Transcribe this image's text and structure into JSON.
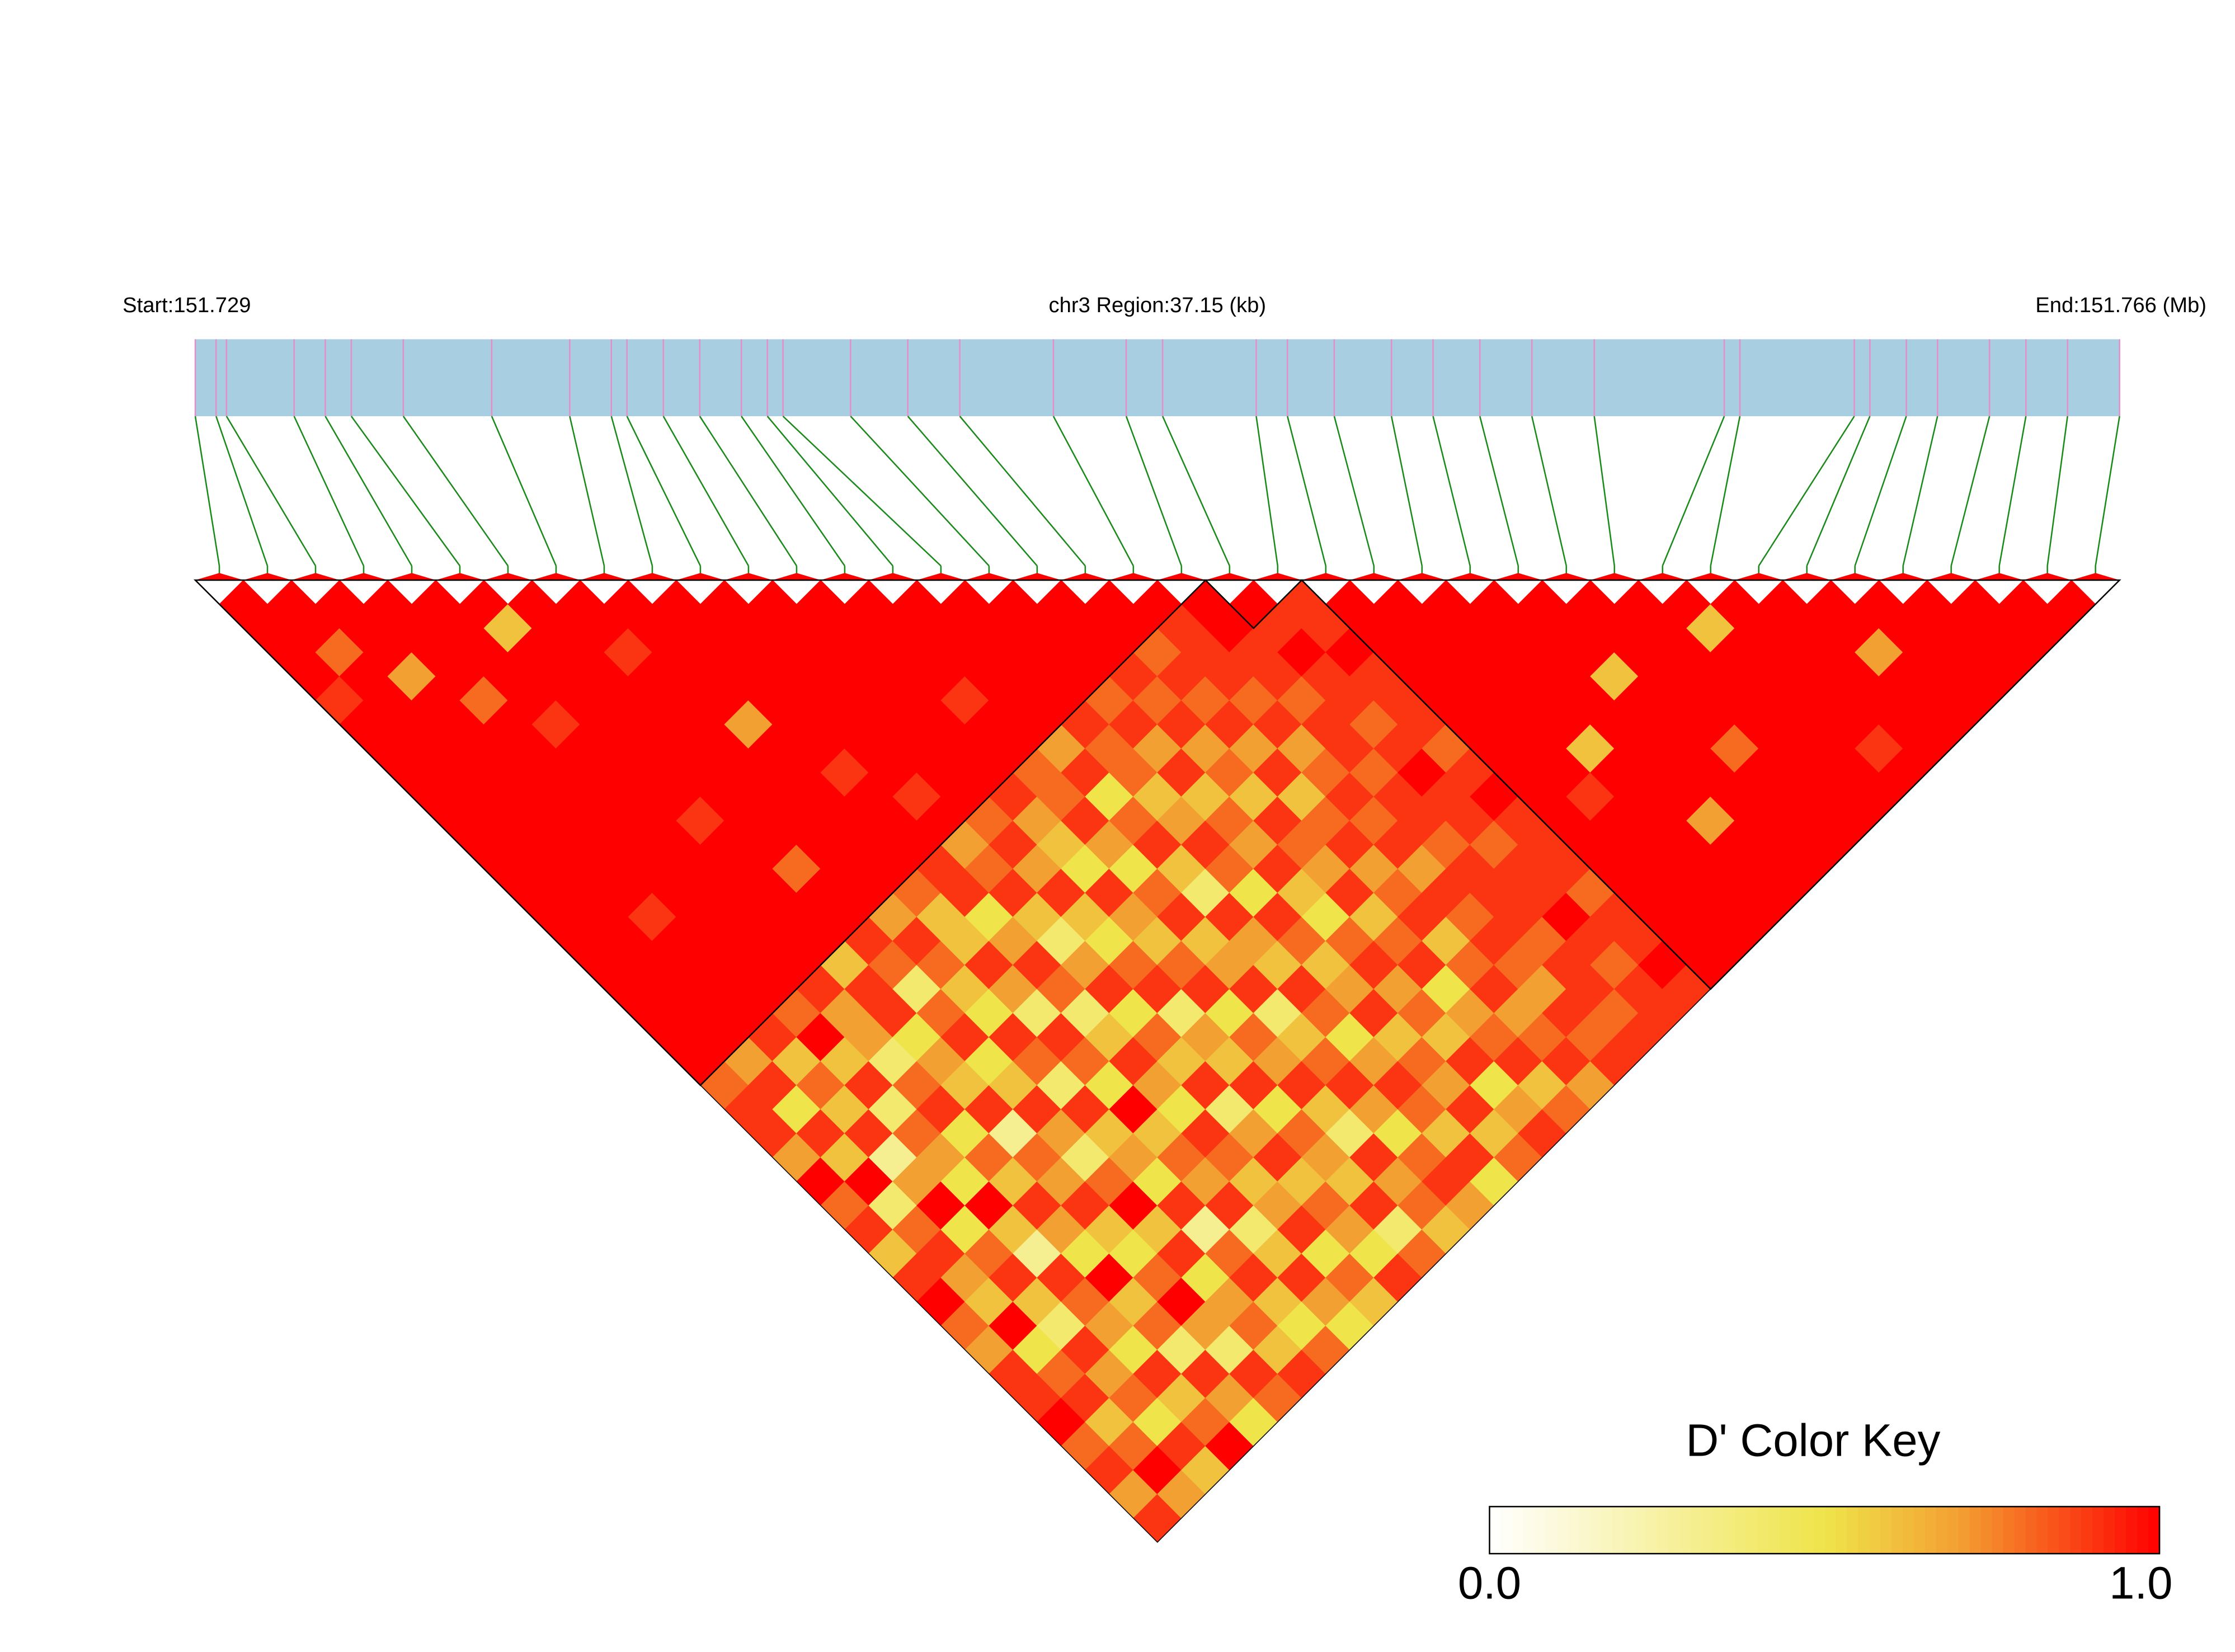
{
  "chart_data": {
    "type": "ld_heatmap",
    "start_label": "Start:151.729",
    "region_label": "chr3 Region:37.15 (kb)",
    "end_label": "End:151.766 (Mb)",
    "legend_title": "D' Color Key",
    "xlim": [
      151.729,
      151.766
    ],
    "positions": [
      151.729,
      151.7294,
      151.7296,
      151.7309,
      151.7315,
      151.732,
      151.733,
      151.7347,
      151.7362,
      151.737,
      151.7373,
      151.738,
      151.7387,
      151.7395,
      151.74,
      151.7403,
      151.7416,
      151.7427,
      151.7437,
      151.7455,
      151.7469,
      151.7476,
      151.7494,
      151.75,
      151.7509,
      151.752,
      151.7528,
      151.7537,
      151.7547,
      151.7559,
      151.7584,
      151.7587,
      151.7609,
      151.7612,
      151.7619,
      151.7625,
      151.7635,
      151.7642,
      151.765,
      151.766
    ],
    "blocks": [
      [
        0,
        20
      ],
      [
        21,
        22
      ],
      [
        23,
        39
      ]
    ],
    "ld": [
      [
        1,
        1,
        1,
        1,
        0.9,
        1,
        1,
        1,
        1,
        1,
        1,
        1,
        1,
        1,
        1,
        1,
        1,
        1,
        1,
        1,
        0.8,
        0.9,
        0.9,
        0.7,
        1,
        0.8,
        0.9,
        0.6,
        0.9,
        1,
        0.8,
        0.7,
        0.9,
        0.9,
        1,
        0.8,
        0.9,
        0.7,
        0.9
      ],
      [
        1,
        1,
        0.8,
        1,
        1,
        1,
        1,
        1,
        1,
        1,
        1,
        1,
        1,
        1,
        1,
        1,
        1,
        1,
        1,
        0.7,
        0.9,
        0.5,
        0.9,
        0.6,
        1,
        0.4,
        0.8,
        0.9,
        0.7,
        0.6,
        1,
        0.5,
        0.8,
        0.9,
        0.6,
        0.8,
        1,
        0.7
      ],
      [
        1,
        1,
        1,
        0.7,
        1,
        1,
        1,
        1,
        1,
        1,
        1,
        1,
        1,
        0.9,
        1,
        1,
        1,
        1,
        0.9,
        0.6,
        0.8,
        0.6,
        0.9,
        0.3,
        0.7,
        1,
        0.5,
        0.8,
        0.9,
        0.6,
        0.4,
        0.9,
        0.7,
        0.8,
        0.5,
        0.9,
        0.6
      ],
      [
        1,
        1,
        1,
        1,
        0.8,
        1,
        1,
        1,
        1,
        1,
        1,
        1,
        1,
        1,
        1,
        1,
        1,
        0.8,
        1,
        0.6,
        0.9,
        0.4,
        0.8,
        0.7,
        0.5,
        1,
        0.6,
        0.3,
        0.9,
        0.8,
        0.7,
        0.5,
        0.9,
        0.6,
        0.8,
        1
      ],
      [
        1,
        1,
        1,
        1,
        1,
        0.9,
        1,
        1,
        1,
        1,
        1,
        1,
        1,
        1,
        1,
        1,
        0.9,
        0.7,
        0.7,
        0.4,
        0.8,
        0.9,
        0.5,
        0.8,
        0.6,
        0.9,
        0.7,
        0.5,
        1,
        0.6,
        0.8,
        0.4,
        0.9,
        0.7,
        0.5
      ],
      [
        1,
        0.6,
        1,
        1,
        1,
        1,
        1,
        1,
        1,
        0.9,
        1,
        1,
        1,
        1,
        1,
        0.6,
        0.9,
        0.9,
        0.5,
        0.7,
        0.6,
        0.9,
        0.3,
        0.8,
        0.7,
        0.9,
        0.6,
        0.5,
        0.8,
        1,
        0.7,
        0.4,
        0.9,
        0.8
      ],
      [
        1,
        1,
        1,
        1,
        1,
        1,
        1,
        1,
        1,
        1,
        1,
        0.8,
        1,
        1,
        0.9,
        0.8,
        0.4,
        0.8,
        0.9,
        0.5,
        0.6,
        0.9,
        0.7,
        0.4,
        0.8,
        1,
        0.6,
        0.9,
        0.5,
        0.7,
        0.8,
        0.6,
        0.9
      ],
      [
        1,
        1,
        0.9,
        1,
        1,
        1,
        1,
        1,
        1,
        1,
        1,
        1,
        1,
        0.7,
        0.9,
        0.8,
        0.6,
        0.5,
        0.9,
        0.8,
        0.4,
        0.9,
        0.6,
        0.7,
        0.5,
        0.9,
        0.3,
        0.8,
        0.9,
        0.6,
        0.5,
        0.8
      ],
      [
        1,
        1,
        1,
        1,
        1,
        0.7,
        1,
        1,
        1,
        1,
        1,
        1,
        0.8,
        0.6,
        0.6,
        0.9,
        0.7,
        0.4,
        0.9,
        0.8,
        0.5,
        1,
        0.6,
        0.8,
        0.7,
        0.9,
        0.4,
        0.6,
        0.9,
        0.7,
        0.5
      ],
      [
        1,
        1,
        1,
        1,
        1,
        1,
        1,
        0.9,
        1,
        1,
        1,
        0.9,
        0.9,
        0.5,
        0.7,
        0.9,
        0.8,
        0.4,
        0.6,
        0.9,
        0.7,
        0.5,
        0.9,
        0.8,
        0.6,
        0.7,
        0.9,
        0.5,
        0.8,
        0.6
      ],
      [
        1,
        1,
        1,
        1,
        1,
        1,
        1,
        1,
        0.9,
        1,
        0.7,
        0.8,
        0.9,
        0.6,
        0.4,
        0.7,
        0.9,
        0.5,
        0.8,
        0.6,
        0.9,
        0.4,
        0.7,
        0.9,
        0.6,
        0.8,
        0.7,
        0.5,
        0.9
      ],
      [
        1,
        1,
        1,
        1,
        1,
        1,
        1,
        1,
        1,
        0.8,
        0.9,
        0.7,
        0.9,
        0.6,
        0.5,
        0.8,
        0.9,
        0.4,
        0.7,
        0.6,
        0.9,
        0.5,
        0.8,
        0.7,
        0.6,
        0.9,
        0.4,
        0.8
      ],
      [
        1,
        1,
        1,
        1,
        1,
        1,
        1,
        1,
        0.9,
        0.7,
        0.6,
        0.5,
        0.9,
        0.7,
        0.6,
        0.8,
        0.9,
        0.5,
        0.8,
        0.7,
        0.9,
        0.6,
        0.4,
        0.9,
        0.7,
        0.8,
        0.6
      ],
      [
        1,
        1,
        1,
        1,
        0.9,
        1,
        1,
        0.8,
        0.8,
        0.9,
        0.7,
        0.5,
        0.8,
        0.9,
        0.6,
        0.7,
        0.9,
        0.4,
        0.6,
        0.8,
        0.9,
        0.7,
        0.5,
        0.8,
        0.9,
        0.7
      ],
      [
        1,
        1,
        1,
        1,
        1,
        1,
        0.7,
        0.9,
        0.5,
        0.8,
        0.9,
        0.6,
        0.4,
        0.9,
        0.7,
        0.6,
        0.9,
        0.8,
        0.5,
        0.7,
        0.9,
        0.8,
        0.6,
        0.9,
        0.5
      ],
      [
        1,
        1,
        1,
        1,
        1,
        0.9,
        0.8,
        0.8,
        0.6,
        0.7,
        0.9,
        0.8,
        0.5,
        0.9,
        0.8,
        0.6,
        0.7,
        0.9,
        0.6,
        0.8,
        0.7,
        0.9,
        0.6,
        0.8
      ],
      [
        1,
        1,
        1,
        1,
        0.8,
        0.9,
        0.7,
        0.9,
        0.6,
        0.8,
        0.7,
        0.9,
        0.6,
        0.5,
        0.8,
        0.9,
        0.7,
        0.8,
        0.6,
        0.9,
        0.5,
        0.7,
        0.9
      ],
      [
        1,
        1,
        1,
        0.9,
        0.8,
        0.9,
        0.7,
        0.8,
        0.6,
        0.9,
        0.8,
        0.7,
        0.9,
        0.6,
        0.8,
        0.9,
        0.5,
        0.7,
        0.8,
        0.9,
        0.6,
        0.8
      ],
      [
        1,
        1,
        0.8,
        0.9,
        0.8,
        0.9,
        0.7,
        0.9,
        0.6,
        0.8,
        0.9,
        0.7,
        0.8,
        0.9,
        0.6,
        0.8,
        0.9,
        0.7,
        0.8,
        0.9,
        0.7
      ],
      [
        1,
        0.9,
        0.9,
        0.9,
        0.8,
        0.9,
        0.7,
        0.8,
        0.9,
        0.8,
        0.9,
        0.7,
        0.9,
        0.8,
        0.9,
        0.8,
        0.7,
        0.9,
        0.8,
        0.9
      ],
      [
        1,
        1,
        0.9,
        0.9,
        0.8,
        0.9,
        0.9,
        0.8,
        0.9,
        0.9,
        0.8,
        0.9,
        0.9,
        0.9,
        0.8,
        0.9,
        0.9,
        0.8,
        0.9
      ],
      [
        1,
        0.9,
        1,
        0.9,
        0.9,
        0.8,
        0.9,
        1,
        0.9,
        0.9,
        0.8,
        0.9,
        0.9,
        1,
        0.9,
        0.8,
        0.9,
        0.9
      ],
      [
        0.9,
        0.9,
        1,
        0.9,
        0.9,
        0.9,
        0.8,
        0.9,
        1,
        0.9,
        0.9,
        0.9,
        0.8,
        0.9,
        0.9,
        1,
        0.9
      ],
      [
        1,
        1,
        1,
        1,
        1,
        1,
        1,
        1,
        1,
        1,
        1,
        1,
        1,
        1,
        1,
        1
      ],
      [
        1,
        1,
        1,
        1,
        1,
        1,
        1,
        1,
        0.9,
        1,
        1,
        1,
        1,
        1,
        1
      ],
      [
        1,
        1,
        1,
        1,
        1,
        1,
        0.6,
        1,
        1,
        1,
        1,
        1,
        1,
        1
      ],
      [
        1,
        1,
        1,
        1,
        1,
        1,
        1,
        1,
        1,
        0.7,
        1,
        1,
        1
      ],
      [
        1,
        1,
        1,
        0.6,
        1,
        1,
        1,
        1,
        1,
        1,
        1,
        1
      ],
      [
        1,
        1,
        1,
        1,
        1,
        1,
        0.8,
        1,
        1,
        1,
        1
      ],
      [
        1,
        1,
        1,
        1,
        1,
        1,
        1,
        1,
        1,
        1
      ],
      [
        1,
        0.6,
        1,
        1,
        1,
        1,
        1,
        1,
        1
      ],
      [
        1,
        1,
        1,
        1,
        1,
        1,
        0.9,
        1
      ],
      [
        1,
        1,
        1,
        1,
        1,
        1,
        1
      ],
      [
        1,
        1,
        0.7,
        1,
        1,
        1
      ],
      [
        1,
        1,
        1,
        1,
        1
      ],
      [
        1,
        1,
        1,
        1
      ],
      [
        1,
        1,
        1
      ],
      [
        1,
        1
      ],
      [
        1
      ]
    ],
    "colorscale": [
      [
        0,
        "#ffffff"
      ],
      [
        0.5,
        "#efe44a"
      ],
      [
        0.7,
        "#f3a032"
      ],
      [
        1,
        "#ff0000"
      ]
    ],
    "legend_ticks": [
      {
        "value": 0,
        "label": "0.0"
      },
      {
        "value": 1,
        "label": "1.0"
      }
    ],
    "bar_color": "#a7cfe1",
    "snp_line_color": "#e58fc8",
    "link_color": "#1a8a1a"
  }
}
